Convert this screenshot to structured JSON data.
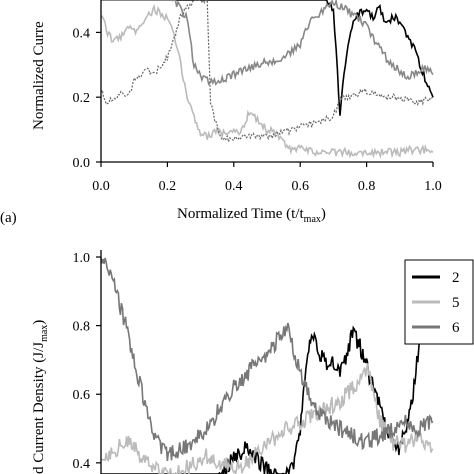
{
  "chart_data": [
    {
      "panel_label": "(a)",
      "type": "line",
      "xlabel": "Normalized Time (t/t",
      "xlabel_sub": "max",
      "xlabel_close": ")",
      "ylabel": "Normalized Curre",
      "xlim": [
        0,
        1.0
      ],
      "ylim": [
        0,
        0.5
      ],
      "x_ticks": [
        "0.0",
        "0.2",
        "0.4",
        "0.6",
        "0.8",
        "1.0"
      ],
      "y_ticks": [
        "0.0",
        "0.2",
        "0.4"
      ],
      "series": [
        {
          "color": "#000000",
          "style": "solid",
          "x": [
            0.0,
            0.04,
            0.08,
            0.12,
            0.16,
            0.2,
            0.25,
            0.3,
            0.35,
            0.4,
            0.45,
            0.5,
            0.55,
            0.6,
            0.65,
            0.68,
            0.7,
            0.72,
            0.74,
            0.76,
            0.78,
            0.8,
            0.82,
            0.84,
            0.86,
            0.88,
            0.9,
            0.92,
            0.94,
            0.96,
            0.98,
            1.0
          ],
          "y": [
            0.52,
            0.52,
            0.52,
            0.52,
            0.52,
            0.52,
            0.52,
            0.52,
            0.52,
            0.52,
            0.52,
            0.52,
            0.52,
            0.52,
            0.52,
            0.5,
            0.47,
            0.15,
            0.34,
            0.44,
            0.46,
            0.47,
            0.44,
            0.48,
            0.42,
            0.45,
            0.43,
            0.39,
            0.36,
            0.3,
            0.25,
            0.2
          ]
        },
        {
          "color": "#bbbbbb",
          "style": "solid",
          "x": [
            0.0,
            0.02,
            0.04,
            0.06,
            0.08,
            0.1,
            0.12,
            0.14,
            0.16,
            0.18,
            0.2,
            0.22,
            0.24,
            0.26,
            0.28,
            0.3,
            0.32,
            0.35,
            0.38,
            0.4,
            0.42,
            0.45,
            0.48,
            0.5,
            0.52,
            0.54,
            0.56,
            0.6,
            0.65,
            0.7,
            0.75,
            0.8,
            0.85,
            0.9,
            0.95,
            1.0
          ],
          "y": [
            0.45,
            0.4,
            0.37,
            0.39,
            0.42,
            0.4,
            0.43,
            0.45,
            0.47,
            0.46,
            0.44,
            0.39,
            0.3,
            0.2,
            0.14,
            0.09,
            0.08,
            0.1,
            0.08,
            0.1,
            0.09,
            0.16,
            0.12,
            0.1,
            0.09,
            0.08,
            0.04,
            0.04,
            0.03,
            0.03,
            0.03,
            0.03,
            0.03,
            0.03,
            0.04,
            0.03
          ]
        },
        {
          "color": "#888888",
          "style": "solid",
          "x": [
            0.0,
            0.04,
            0.08,
            0.12,
            0.16,
            0.2,
            0.22,
            0.24,
            0.26,
            0.28,
            0.3,
            0.32,
            0.35,
            0.38,
            0.4,
            0.45,
            0.5,
            0.55,
            0.6,
            0.62,
            0.64,
            0.66,
            0.68,
            0.7,
            0.72,
            0.74,
            0.76,
            0.78,
            0.8,
            0.82,
            0.84,
            0.86,
            0.88,
            0.9,
            0.92,
            0.94,
            0.96,
            0.98,
            1.0
          ],
          "y": [
            0.52,
            0.52,
            0.52,
            0.52,
            0.52,
            0.52,
            0.5,
            0.47,
            0.44,
            0.3,
            0.26,
            0.25,
            0.25,
            0.26,
            0.27,
            0.29,
            0.31,
            0.32,
            0.36,
            0.42,
            0.44,
            0.46,
            0.48,
            0.49,
            0.48,
            0.47,
            0.45,
            0.44,
            0.42,
            0.38,
            0.35,
            0.32,
            0.3,
            0.28,
            0.26,
            0.27,
            0.28,
            0.29,
            0.27
          ]
        },
        {
          "color": "#666666",
          "style": "dotted",
          "x": [
            0.0,
            0.02,
            0.04,
            0.06,
            0.08,
            0.1,
            0.12,
            0.14,
            0.16,
            0.18,
            0.2,
            0.22,
            0.24,
            0.26,
            0.28,
            0.3,
            0.32,
            0.33,
            0.36,
            0.4,
            0.45,
            0.5,
            0.55,
            0.6,
            0.65,
            0.7,
            0.72,
            0.75,
            0.8,
            0.85,
            0.9,
            0.95,
            1.0
          ],
          "y": [
            0.22,
            0.18,
            0.2,
            0.21,
            0.2,
            0.25,
            0.27,
            0.28,
            0.27,
            0.3,
            0.32,
            0.38,
            0.45,
            0.48,
            0.5,
            0.5,
            0.5,
            0.18,
            0.07,
            0.07,
            0.08,
            0.08,
            0.09,
            0.11,
            0.12,
            0.14,
            0.2,
            0.2,
            0.22,
            0.2,
            0.2,
            0.18,
            0.2
          ]
        }
      ]
    },
    {
      "type": "line",
      "ylabel": "d Current Density (J/J",
      "ylabel_sub": "max",
      "ylabel_close": ")",
      "xlim": [
        0,
        1.0
      ],
      "ylim": [
        0.35,
        1.0
      ],
      "y_ticks": [
        "1.0",
        "0.8",
        "0.6",
        "0.4"
      ],
      "y_tick_values": [
        1.0,
        0.8,
        0.6,
        0.4
      ],
      "legend_position": "top-right",
      "series": [
        {
          "name": "2",
          "color": "#000000",
          "x": [
            0.0,
            0.04,
            0.08,
            0.12,
            0.16,
            0.2,
            0.24,
            0.28,
            0.32,
            0.36,
            0.4,
            0.44,
            0.48,
            0.52,
            0.54,
            0.56,
            0.58,
            0.6,
            0.62,
            0.64,
            0.66,
            0.68,
            0.7,
            0.72,
            0.74,
            0.76,
            0.78,
            0.8,
            0.82,
            0.84,
            0.86,
            0.88,
            0.9,
            0.92,
            0.94,
            0.96,
            0.98,
            1.0
          ],
          "y": [
            0.3,
            0.3,
            0.3,
            0.3,
            0.3,
            0.3,
            0.3,
            0.3,
            0.3,
            0.36,
            0.42,
            0.44,
            0.4,
            0.36,
            0.35,
            0.36,
            0.4,
            0.5,
            0.7,
            0.78,
            0.72,
            0.68,
            0.7,
            0.66,
            0.72,
            0.78,
            0.74,
            0.68,
            0.62,
            0.56,
            0.5,
            0.46,
            0.44,
            0.5,
            0.6,
            0.76,
            0.88,
            0.95
          ]
        },
        {
          "name": "5",
          "color": "#bbbbbb",
          "x": [
            0.0,
            0.04,
            0.08,
            0.12,
            0.16,
            0.2,
            0.24,
            0.28,
            0.32,
            0.36,
            0.4,
            0.44,
            0.48,
            0.52,
            0.56,
            0.6,
            0.64,
            0.68,
            0.72,
            0.76,
            0.8,
            0.84,
            0.88,
            0.92,
            0.96,
            1.0
          ],
          "y": [
            0.41,
            0.44,
            0.46,
            0.42,
            0.38,
            0.36,
            0.37,
            0.4,
            0.42,
            0.4,
            0.38,
            0.4,
            0.44,
            0.47,
            0.5,
            0.52,
            0.54,
            0.56,
            0.58,
            0.62,
            0.68,
            0.52,
            0.46,
            0.45,
            0.48,
            0.44
          ]
        },
        {
          "name": "6",
          "color": "#777777",
          "x": [
            0.0,
            0.04,
            0.08,
            0.12,
            0.16,
            0.2,
            0.24,
            0.28,
            0.32,
            0.36,
            0.4,
            0.44,
            0.48,
            0.52,
            0.56,
            0.6,
            0.64,
            0.68,
            0.72,
            0.76,
            0.8,
            0.84,
            0.88,
            0.92,
            0.96,
            1.0
          ],
          "y": [
            1.0,
            0.92,
            0.78,
            0.62,
            0.48,
            0.42,
            0.44,
            0.46,
            0.5,
            0.56,
            0.62,
            0.66,
            0.7,
            0.74,
            0.8,
            0.66,
            0.56,
            0.52,
            0.5,
            0.48,
            0.46,
            0.48,
            0.5,
            0.52,
            0.5,
            0.52
          ]
        }
      ]
    }
  ]
}
